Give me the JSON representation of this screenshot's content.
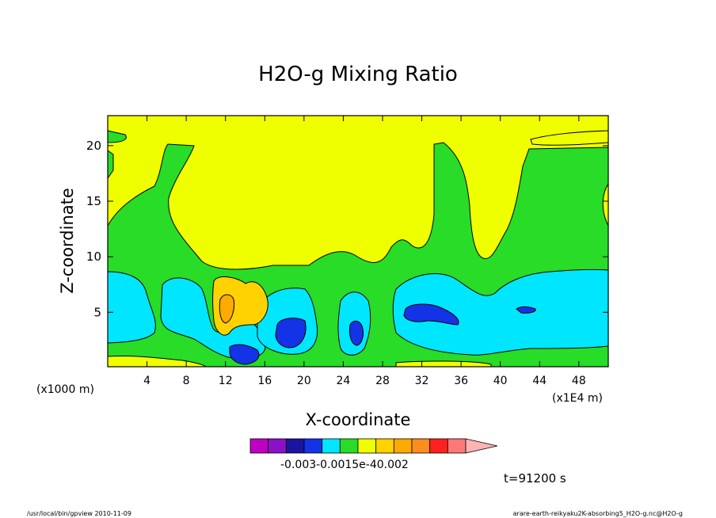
{
  "chart_data": {
    "type": "heatmap",
    "title": "H2O-g Mixing Ratio",
    "xlabel": "X-coordinate",
    "ylabel": "Z-coordinate",
    "x_unit_left": "(x1000 m)",
    "x_unit_right": "(x1E4 m)",
    "xlim": [
      0,
      51
    ],
    "ylim": [
      0.1,
      22.7
    ],
    "x_ticks": [
      "4",
      "8",
      "12",
      "16",
      "20",
      "24",
      "28",
      "32",
      "36",
      "40",
      "44",
      "48"
    ],
    "y_ticks": [
      "5",
      "10",
      "15",
      "20"
    ],
    "grid": false,
    "colorbar": {
      "tick_labels": "-0.003-0.0015e-40.002",
      "colors": [
        "#c000c0",
        "#8c10c8",
        "#1a14a0",
        "#1432e6",
        "#00e6ff",
        "#28dc28",
        "#f0ff00",
        "#ffd200",
        "#ffaa00",
        "#ff8c1e",
        "#ff2020",
        "#ff7878",
        "#ffb4b4"
      ]
    },
    "regions": [
      {
        "level": "yellow"
      },
      {
        "level": "green"
      },
      {
        "level": "cyan"
      },
      {
        "level": "blue"
      },
      {
        "level": "orange"
      }
    ],
    "colors": {
      "yellow": "#f0ff00",
      "green": "#28dc28",
      "cyan": "#00e6ff",
      "blue": "#1432e6",
      "light_orange": "#ffd200",
      "orange": "#ffaa00"
    }
  },
  "time_label": "t=91200 s",
  "footer_left": "/usr/local/bin/gpview  2010-11-09",
  "footer_right": "arare-earth-reikyaku2K-absorbing5_H2O-g.nc@H2O-g"
}
